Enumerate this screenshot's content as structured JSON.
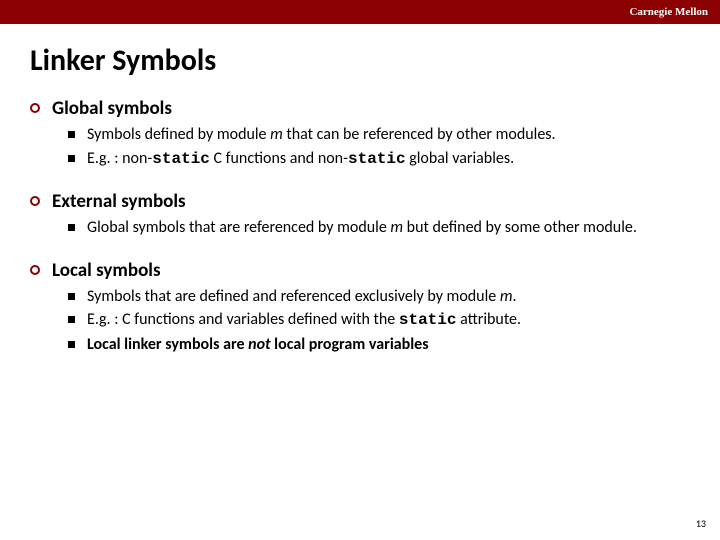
{
  "header": {
    "brand": "Carnegie Mellon",
    "bar_color": "#8b0000",
    "text_color": "#ffffff"
  },
  "title": "Linker Symbols",
  "page_number": "13",
  "sections": [
    {
      "heading": "Global symbols",
      "items": [
        {
          "parts": [
            {
              "t": "Symbols defined by module "
            },
            {
              "t": "m",
              "cls": "italic"
            },
            {
              "t": " that can be referenced by other modules."
            }
          ]
        },
        {
          "parts": [
            {
              "t": "E.g. : non-"
            },
            {
              "t": "static",
              "cls": "mono bold"
            },
            {
              "t": " C functions and non-"
            },
            {
              "t": "static",
              "cls": "mono bold"
            },
            {
              "t": " global variables."
            }
          ]
        }
      ]
    },
    {
      "heading": "External symbols",
      "items": [
        {
          "parts": [
            {
              "t": "Global symbols that are referenced by module "
            },
            {
              "t": "m",
              "cls": "italic"
            },
            {
              "t": " but defined by some other module."
            }
          ]
        }
      ]
    },
    {
      "heading": "Local symbols",
      "items": [
        {
          "parts": [
            {
              "t": "Symbols that are defined and referenced exclusively by module "
            },
            {
              "t": "m",
              "cls": "italic"
            },
            {
              "t": "."
            }
          ]
        },
        {
          "parts": [
            {
              "t": "E.g. : C functions and variables defined with the "
            },
            {
              "t": "static",
              "cls": "mono bold"
            },
            {
              "t": "  attribute."
            }
          ]
        },
        {
          "parts": [
            {
              "t": "Local linker symbols are ",
              "cls": "bold"
            },
            {
              "t": "not",
              "cls": "bold italic"
            },
            {
              "t": " local program variables",
              "cls": "bold"
            }
          ]
        }
      ]
    }
  ],
  "styling": {
    "ring_bullet_color": "#8b0000",
    "square_bullet_color": "#000000",
    "title_fontsize": 30,
    "section_title_fontsize": 19,
    "body_fontsize": 16,
    "background_color": "#ffffff"
  }
}
